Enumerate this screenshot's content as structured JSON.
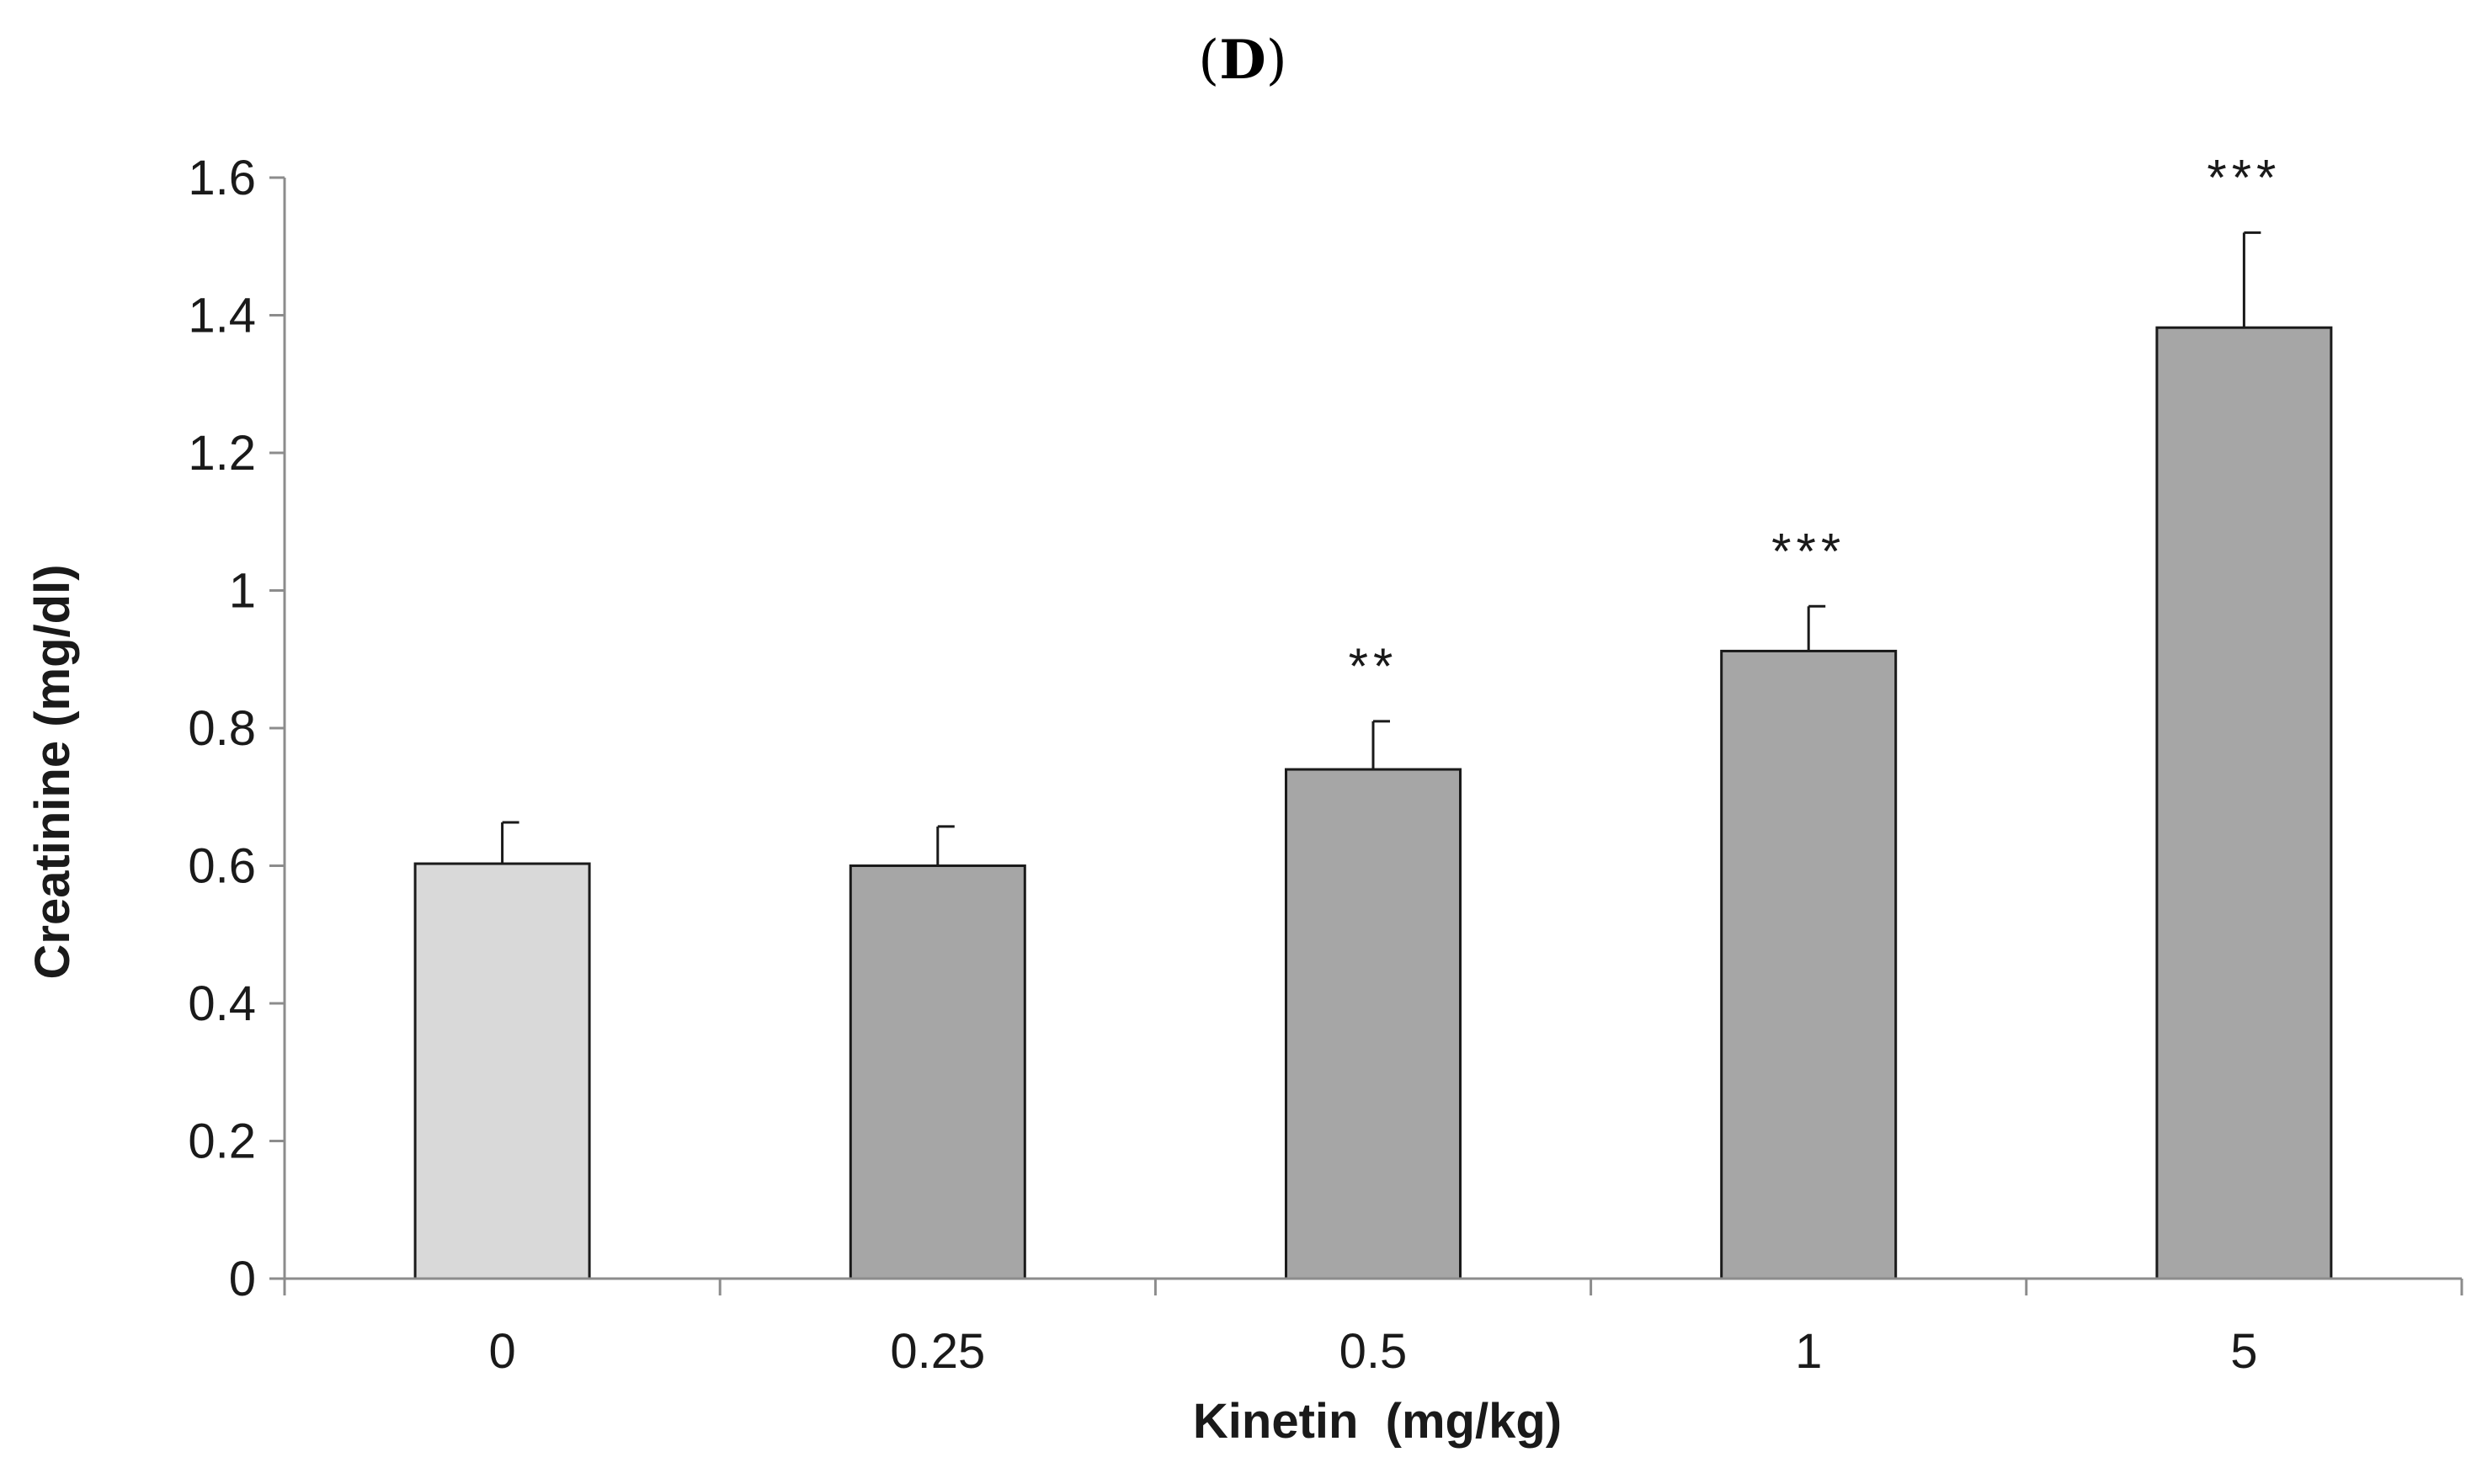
{
  "chart_data": {
    "type": "bar",
    "title": "(D)",
    "title_open": "(",
    "title_letter": "D",
    "title_close": ")",
    "xlabel": "Kinetin  (mg/kg)",
    "ylabel": "Creatinine (mg/dl)",
    "ylim": [
      0,
      1.6
    ],
    "yticks": [
      0,
      0.2,
      0.4,
      0.6,
      0.8,
      1,
      1.2,
      1.4,
      1.6
    ],
    "categories": [
      "0",
      "0.25",
      "0.5",
      "1",
      "5"
    ],
    "values": [
      0.603,
      0.6,
      0.74,
      0.912,
      1.382
    ],
    "errors": [
      0.06,
      0.057,
      0.07,
      0.065,
      0.138
    ],
    "annotations": [
      "",
      "",
      "**",
      "***",
      "***"
    ],
    "colors": {
      "control": "#d9d9d9",
      "treated": "#a6a6a6",
      "stroke": "#1a1a1a",
      "axis": "#8c8c8c"
    }
  }
}
